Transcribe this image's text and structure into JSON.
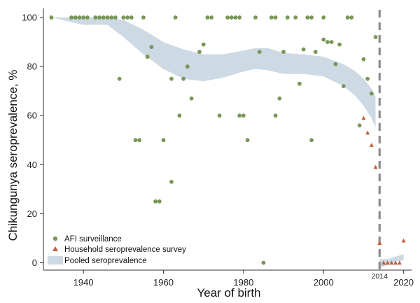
{
  "chart_data": {
    "type": "scatter",
    "xlabel": "Year of birth",
    "ylabel": "Chikungunya seroprevalence, %",
    "xlim": [
      1930,
      2022
    ],
    "ylim": [
      -3,
      102
    ],
    "x_ticks": [
      1940,
      1960,
      1980,
      2000,
      2020
    ],
    "y_ticks": [
      0,
      20,
      40,
      60,
      80,
      100
    ],
    "grid": false,
    "legend_position": "bottom-left",
    "colors": {
      "afi": "#7a9a55",
      "household": "#c0603a",
      "band": "#cdd9e3",
      "cutoff": "#8c8c8c"
    },
    "cutoff": {
      "x": 2014,
      "label": "2014"
    },
    "legend": [
      {
        "key": "afi",
        "label": "AFI surveillance"
      },
      {
        "key": "household",
        "label": "Household seroprevalence survey"
      },
      {
        "key": "band",
        "label": "Pooled seroprevalence"
      }
    ],
    "band_upper": [
      [
        1932,
        100
      ],
      [
        1940,
        100
      ],
      [
        1946,
        100
      ],
      [
        1950,
        99
      ],
      [
        1955,
        95
      ],
      [
        1960,
        90
      ],
      [
        1965,
        87
      ],
      [
        1970,
        85
      ],
      [
        1975,
        85
      ],
      [
        1980,
        86.5
      ],
      [
        1983,
        87.5
      ],
      [
        1986,
        87.5
      ],
      [
        1990,
        85.5
      ],
      [
        1995,
        85
      ],
      [
        2000,
        84
      ],
      [
        2005,
        81
      ],
      [
        2008,
        78
      ],
      [
        2010,
        75
      ],
      [
        2012,
        71
      ],
      [
        2013,
        67.5
      ]
    ],
    "band_lower": [
      [
        1932,
        100
      ],
      [
        1940,
        97
      ],
      [
        1946,
        97
      ],
      [
        1950,
        92
      ],
      [
        1955,
        85
      ],
      [
        1960,
        79
      ],
      [
        1965,
        75
      ],
      [
        1970,
        74
      ],
      [
        1975,
        75.5
      ],
      [
        1980,
        78
      ],
      [
        1983,
        79
      ],
      [
        1986,
        78.5
      ],
      [
        1990,
        77
      ],
      [
        1995,
        77
      ],
      [
        2000,
        76
      ],
      [
        2005,
        72
      ],
      [
        2008,
        68
      ],
      [
        2010,
        64
      ],
      [
        2012,
        59
      ],
      [
        2013,
        55
      ]
    ],
    "band2_upper": [
      [
        2014,
        1.5
      ],
      [
        2016,
        1.5
      ],
      [
        2018,
        2.5
      ],
      [
        2020,
        3.5
      ]
    ],
    "band2_lower": [
      [
        2014,
        -2
      ],
      [
        2016,
        -1
      ],
      [
        2018,
        0.5
      ],
      [
        2020,
        1
      ]
    ],
    "series": [
      {
        "key": "afi",
        "name": "AFI surveillance",
        "points": [
          [
            1932,
            100
          ],
          [
            1937,
            100
          ],
          [
            1938,
            100
          ],
          [
            1939,
            100
          ],
          [
            1940,
            100
          ],
          [
            1941,
            100
          ],
          [
            1943,
            100
          ],
          [
            1944,
            100
          ],
          [
            1945,
            100
          ],
          [
            1946,
            100
          ],
          [
            1947,
            100
          ],
          [
            1948,
            100
          ],
          [
            1950,
            100
          ],
          [
            1951,
            100
          ],
          [
            1952,
            100
          ],
          [
            1955,
            100
          ],
          [
            1963,
            100
          ],
          [
            1971,
            100
          ],
          [
            1972,
            100
          ],
          [
            1976,
            100
          ],
          [
            1977,
            100
          ],
          [
            1978,
            100
          ],
          [
            1979,
            100
          ],
          [
            1983,
            100
          ],
          [
            1987,
            100
          ],
          [
            1988,
            100
          ],
          [
            1991,
            100
          ],
          [
            1993,
            100
          ],
          [
            1996,
            100
          ],
          [
            1997,
            100
          ],
          [
            2000,
            100
          ],
          [
            2006,
            100
          ],
          [
            2007,
            100
          ],
          [
            2000,
            91
          ],
          [
            2001,
            90
          ],
          [
            2002,
            90
          ],
          [
            2004,
            89
          ],
          [
            1995,
            87
          ],
          [
            1998,
            86
          ],
          [
            1990,
            86
          ],
          [
            1984,
            86
          ],
          [
            1970,
            89
          ],
          [
            1969,
            86
          ],
          [
            1957,
            88
          ],
          [
            1956,
            84
          ],
          [
            1966,
            80
          ],
          [
            1962,
            75
          ],
          [
            1965,
            75
          ],
          [
            1967,
            67
          ],
          [
            1949,
            75
          ],
          [
            1994,
            73
          ],
          [
            2003,
            81
          ],
          [
            2005,
            72
          ],
          [
            2010,
            83
          ],
          [
            2011,
            75
          ],
          [
            2012,
            69
          ],
          [
            2009,
            56
          ],
          [
            2013,
            92
          ],
          [
            1964,
            60
          ],
          [
            1974,
            60
          ],
          [
            1979,
            60
          ],
          [
            1980,
            60
          ],
          [
            1988,
            60
          ],
          [
            1989,
            67
          ],
          [
            1960,
            50
          ],
          [
            1953,
            50
          ],
          [
            1954,
            50
          ],
          [
            1981,
            50
          ],
          [
            1997,
            50
          ],
          [
            1962,
            33
          ],
          [
            1958,
            25
          ],
          [
            1959,
            25
          ],
          [
            1985,
            0
          ]
        ]
      },
      {
        "key": "household",
        "name": "Household seroprevalence survey",
        "points": [
          [
            2010,
            59
          ],
          [
            2011,
            53
          ],
          [
            2012,
            48
          ],
          [
            2013,
            39
          ],
          [
            2014,
            8
          ],
          [
            2015,
            0
          ],
          [
            2016,
            0
          ],
          [
            2017,
            0
          ],
          [
            2018,
            0
          ],
          [
            2019,
            0
          ],
          [
            2020,
            9
          ]
        ]
      }
    ]
  }
}
